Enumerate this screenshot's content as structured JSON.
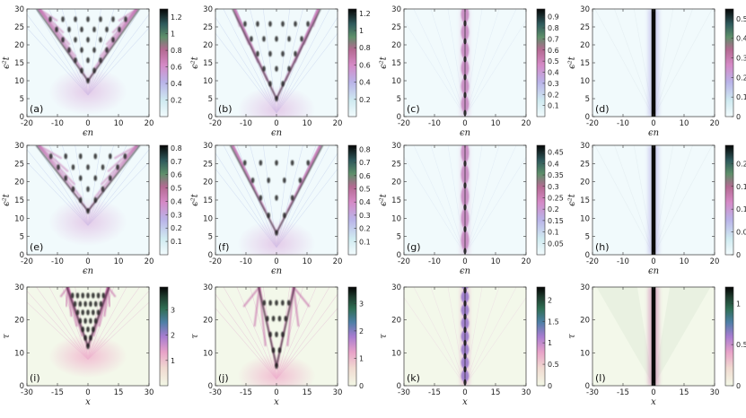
{
  "chart_data": [
    {
      "id": "a",
      "type": "heatmap",
      "label": "(a)",
      "xlabel": "ϵn",
      "ylabel": "ϵ²t",
      "xlim": [
        -20,
        20
      ],
      "ylim": [
        0,
        30
      ],
      "xticks": [
        "-20",
        "-10",
        "0",
        "10",
        "20"
      ],
      "yticks": [
        "0",
        "5",
        "10",
        "15",
        "20",
        "25",
        "30"
      ],
      "colorbar": {
        "ticks": [
          "0.2",
          "0.4",
          "0.6",
          "0.8",
          "1",
          "1.2"
        ],
        "values": [
          0.2,
          0.4,
          0.6,
          0.8,
          1.0,
          1.2
        ],
        "max": 1.3
      },
      "colormap": "cubehelix_reversed",
      "pattern": "fan",
      "apex": 10,
      "spread": 0.8,
      "strips": 6
    },
    {
      "id": "b",
      "type": "heatmap",
      "label": "(b)",
      "xlabel": "ϵn",
      "ylabel": "ϵ²t",
      "xlim": [
        -20,
        20
      ],
      "ylim": [
        0,
        30
      ],
      "xticks": [
        "-20",
        "-10",
        "0",
        "10",
        "20"
      ],
      "yticks": [
        "0",
        "5",
        "10",
        "15",
        "20",
        "25",
        "30"
      ],
      "colorbar": {
        "ticks": [
          "0.2",
          "0.4",
          "0.6",
          "0.8",
          "1",
          "1.2"
        ],
        "values": [
          0.2,
          0.4,
          0.6,
          0.8,
          1.0,
          1.2
        ],
        "max": 1.25
      },
      "colormap": "cubehelix_reversed",
      "pattern": "fan",
      "apex": 5,
      "spread": 0.55,
      "strips": 5
    },
    {
      "id": "c",
      "type": "heatmap",
      "label": "(c)",
      "xlabel": "ϵn",
      "ylabel": "ϵ²t",
      "xlim": [
        -20,
        20
      ],
      "ylim": [
        0,
        30
      ],
      "xticks": [
        "-20",
        "-10",
        "0",
        "10",
        "20"
      ],
      "yticks": [
        "0",
        "5",
        "10",
        "15",
        "20",
        "25",
        "30"
      ],
      "colorbar": {
        "ticks": [
          "0.1",
          "0.2",
          "0.3",
          "0.4",
          "0.5",
          "0.6",
          "0.7",
          "0.8",
          "0.9"
        ],
        "values": [
          0.1,
          0.2,
          0.3,
          0.4,
          0.5,
          0.6,
          0.7,
          0.8,
          0.9
        ],
        "max": 0.97
      },
      "colormap": "cubehelix_reversed",
      "pattern": "breather",
      "period": 5
    },
    {
      "id": "d",
      "type": "heatmap",
      "label": "(d)",
      "xlabel": "ϵn",
      "ylabel": "ϵ²t",
      "xlim": [
        -20,
        20
      ],
      "ylim": [
        0,
        30
      ],
      "xticks": [
        "-20",
        "-10",
        "0",
        "10",
        "20"
      ],
      "yticks": [
        "0",
        "5",
        "10",
        "15",
        "20",
        "25",
        "30"
      ],
      "colorbar": {
        "ticks": [
          "0",
          "0.1",
          "0.2",
          "0.3",
          "0.4",
          "0.5"
        ],
        "values": [
          0,
          0.1,
          0.2,
          0.3,
          0.4,
          0.5
        ],
        "max": 0.55
      },
      "colormap": "cubehelix_reversed",
      "pattern": "soliton"
    },
    {
      "id": "e",
      "type": "heatmap",
      "label": "(e)",
      "xlabel": "ϵn",
      "ylabel": "ϵ²t",
      "xlim": [
        -20,
        20
      ],
      "ylim": [
        0,
        30
      ],
      "xticks": [
        "-20",
        "-10",
        "0",
        "10",
        "20"
      ],
      "yticks": [
        "0",
        "5",
        "10",
        "15",
        "20",
        "25",
        "30"
      ],
      "colorbar": {
        "ticks": [
          "0.1",
          "0.2",
          "0.3",
          "0.4",
          "0.5",
          "0.6",
          "0.7",
          "0.8"
        ],
        "values": [
          0.1,
          0.2,
          0.3,
          0.4,
          0.5,
          0.6,
          0.7,
          0.8
        ],
        "max": 0.82
      },
      "colormap": "cubehelix_reversed",
      "pattern": "fan",
      "apex": 12,
      "spread": 0.9,
      "strips": 5
    },
    {
      "id": "f",
      "type": "heatmap",
      "label": "(f)",
      "xlabel": "ϵn",
      "ylabel": "ϵ²t",
      "xlim": [
        -20,
        20
      ],
      "ylim": [
        0,
        30
      ],
      "xticks": [
        "-20",
        "-10",
        "0",
        "10",
        "20"
      ],
      "yticks": [
        "0",
        "5",
        "10",
        "15",
        "20",
        "25",
        "30"
      ],
      "colorbar": {
        "ticks": [
          "0.1",
          "0.2",
          "0.3",
          "0.4",
          "0.5",
          "0.6",
          "0.7",
          "0.8"
        ],
        "values": [
          0.1,
          0.2,
          0.3,
          0.4,
          0.5,
          0.6,
          0.7,
          0.8
        ],
        "max": 0.83
      },
      "colormap": "cubehelix_reversed",
      "pattern": "fan",
      "apex": 6,
      "spread": 0.6,
      "strips": 4
    },
    {
      "id": "g",
      "type": "heatmap",
      "label": "(g)",
      "xlabel": "ϵn",
      "ylabel": "ϵ²t",
      "xlim": [
        -20,
        20
      ],
      "ylim": [
        0,
        30
      ],
      "xticks": [
        "-20",
        "-10",
        "0",
        "10",
        "20"
      ],
      "yticks": [
        "0",
        "5",
        "10",
        "15",
        "20",
        "25",
        "30"
      ],
      "colorbar": {
        "ticks": [
          "0.05",
          "0.1",
          "0.15",
          "0.2",
          "0.25",
          "0.3",
          "0.35",
          "0.4",
          "0.45"
        ],
        "values": [
          0.05,
          0.1,
          0.15,
          0.2,
          0.25,
          0.3,
          0.35,
          0.4,
          0.45
        ],
        "max": 0.48
      },
      "colormap": "cubehelix_reversed",
      "pattern": "breather",
      "period": 6
    },
    {
      "id": "h",
      "type": "heatmap",
      "label": "(h)",
      "xlabel": "ϵn",
      "ylabel": "ϵ²t",
      "xlim": [
        -20,
        20
      ],
      "ylim": [
        0,
        30
      ],
      "xticks": [
        "-20",
        "-10",
        "0",
        "10",
        "20"
      ],
      "yticks": [
        "0",
        "5",
        "10",
        "15",
        "20",
        "25",
        "30"
      ],
      "colorbar": {
        "ticks": [
          "0",
          "0.05",
          "0.1",
          "0.15",
          "0.2"
        ],
        "values": [
          0,
          0.05,
          0.1,
          0.15,
          0.2
        ],
        "max": 0.24
      },
      "colormap": "cubehelix_reversed",
      "pattern": "soliton"
    },
    {
      "id": "i",
      "type": "heatmap",
      "label": "(i)",
      "xlabel": "x",
      "ylabel": "τ",
      "xlim": [
        -30,
        30
      ],
      "ylim": [
        0,
        30
      ],
      "xticks": [
        "-30",
        "-15",
        "0",
        "15",
        "30"
      ],
      "yticks": [
        "0",
        "10",
        "20",
        "30"
      ],
      "colorbar": {
        "ticks": [
          "1",
          "2",
          "3"
        ],
        "values": [
          1,
          2,
          3
        ],
        "max": 3.9
      },
      "colormap": "cubehelix_warm",
      "pattern": "fan",
      "apex": 12,
      "spread": 0.55,
      "strips": 6
    },
    {
      "id": "j",
      "type": "heatmap",
      "label": "(j)",
      "xlabel": "x",
      "ylabel": "τ",
      "xlim": [
        -30,
        30
      ],
      "ylim": [
        0,
        30
      ],
      "xticks": [
        "-30",
        "-15",
        "0",
        "15",
        "30"
      ],
      "yticks": [
        "0",
        "10",
        "20",
        "30"
      ],
      "colorbar": {
        "ticks": [
          "0",
          "1",
          "2",
          "3"
        ],
        "values": [
          0,
          1,
          2,
          3
        ],
        "max": 3.6
      },
      "colormap": "cubehelix_warm",
      "pattern": "fan",
      "apex": 6,
      "spread": 0.35,
      "strips": 4
    },
    {
      "id": "k",
      "type": "heatmap",
      "label": "(k)",
      "xlabel": "x",
      "ylabel": "τ",
      "xlim": [
        -30,
        30
      ],
      "ylim": [
        0,
        30
      ],
      "xticks": [
        "-30",
        "-15",
        "0",
        "15",
        "30"
      ],
      "yticks": [
        "0",
        "10",
        "20",
        "30"
      ],
      "colorbar": {
        "ticks": [
          "0",
          "0.5",
          "1",
          "1.5",
          "2"
        ],
        "values": [
          0,
          0.5,
          1,
          1.5,
          2
        ],
        "max": 2.3
      },
      "colormap": "cubehelix_warm",
      "pattern": "breather",
      "period": 4
    },
    {
      "id": "l",
      "type": "heatmap",
      "label": "(l)",
      "xlabel": "x",
      "ylabel": "τ",
      "xlim": [
        -30,
        30
      ],
      "ylim": [
        0,
        30
      ],
      "xticks": [
        "-30",
        "-15",
        "0",
        "15",
        "30"
      ],
      "yticks": [
        "0",
        "10",
        "20",
        "30"
      ],
      "colorbar": {
        "ticks": [
          "0",
          "0.5",
          "1"
        ],
        "values": [
          0,
          0.5,
          1
        ],
        "max": 1.2
      },
      "colormap": "cubehelix_warm",
      "pattern": "soliton"
    }
  ]
}
